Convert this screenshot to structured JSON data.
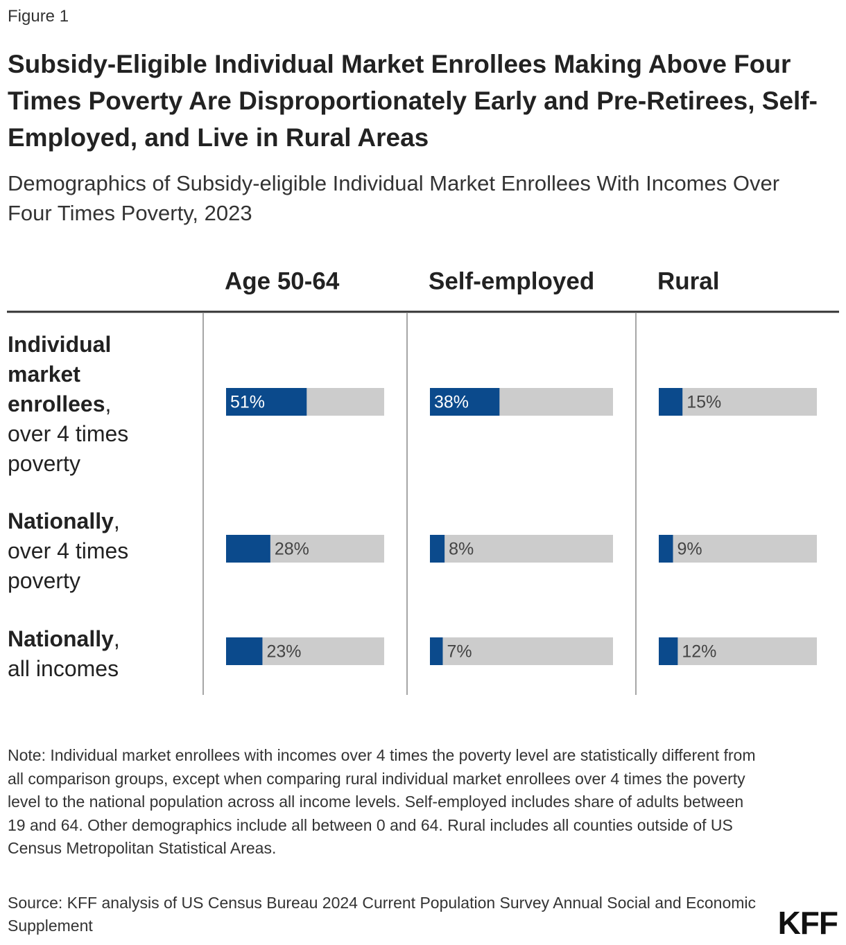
{
  "figure_label": "Figure 1",
  "chart_data": {
    "type": "bar",
    "title": "Subsidy-Eligible Individual Market Enrollees Making Above Four Times Poverty Are Disproportionately Early and Pre-Retirees, Self-Employed, and Live in Rural Areas",
    "subtitle": "Demographics of Subsidy-eligible Individual Market Enrollees With Incomes Over Four Times Poverty, 2023",
    "categories": [
      {
        "bold": "Individual market enrollees",
        "regular": ", over 4 times poverty"
      },
      {
        "bold": "Nationally",
        "regular": ", over 4 times poverty"
      },
      {
        "bold": "Nationally",
        "regular": ", all incomes"
      }
    ],
    "series": [
      {
        "name": "Age 50-64",
        "color": "#0b4a8c",
        "values": [
          51,
          28,
          23
        ],
        "value_labels": [
          "51%",
          "28%",
          "23%"
        ]
      },
      {
        "name": "Self-employed",
        "color": "#0b4a8c",
        "values": [
          38,
          8,
          7
        ],
        "value_labels": [
          "38%",
          "8%",
          "7%"
        ]
      },
      {
        "name": "Rural",
        "color": "#0b4a8c",
        "values": [
          15,
          9,
          12
        ],
        "value_labels": [
          "15%",
          "9%",
          "12%"
        ]
      }
    ],
    "track_color": "#cccccc",
    "xlim": [
      0,
      100
    ]
  },
  "note": "Note: Individual market enrollees with incomes over 4 times the poverty level are statistically different from all comparison groups, except when comparing rural individual market enrollees over 4 times the poverty level to the national population across all income levels. Self-employed includes share of adults between 19 and 64. Other demographics include all between 0 and 64. Rural includes all counties outside of US Census Metropolitan Statistical Areas.",
  "source": "Source: KFF analysis of US Census Bureau 2024 Current Population Survey Annual Social and Economic Supplement",
  "logo": "KFF"
}
